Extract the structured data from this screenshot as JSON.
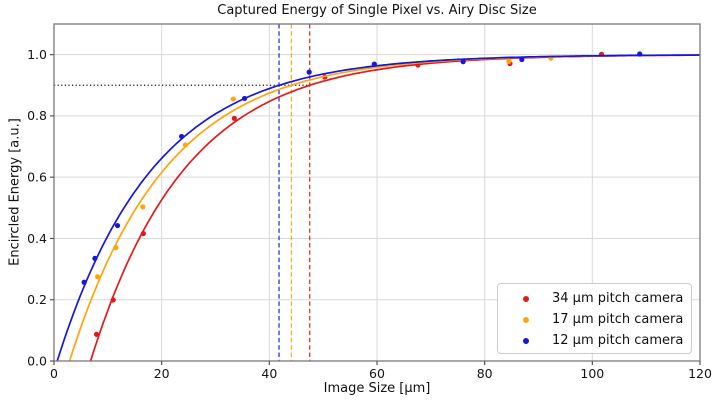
{
  "chart_data": {
    "type": "scatter",
    "title": "Captured Energy of Single Pixel vs. Airy Disc Size",
    "xlabel": "Image Size [μm]",
    "ylabel": "Encircled Energy [a.u.]",
    "xlim": [
      0,
      120
    ],
    "ylim": [
      0,
      1.1
    ],
    "grid": true,
    "grid_color": "#d9d9d9",
    "spine_color": "#7a7a7a",
    "legend_position": "lower right",
    "xticks": [
      {
        "v": 0,
        "label": "0"
      },
      {
        "v": 20,
        "label": "20"
      },
      {
        "v": 40,
        "label": "40"
      },
      {
        "v": 60,
        "label": "60"
      },
      {
        "v": 80,
        "label": "80"
      },
      {
        "v": 100,
        "label": "100"
      },
      {
        "v": 120,
        "label": "120"
      }
    ],
    "yticks": [
      {
        "v": 0.0,
        "label": "0.0"
      },
      {
        "v": 0.2,
        "label": "0.2"
      },
      {
        "v": 0.4,
        "label": "0.4"
      },
      {
        "v": 0.6,
        "label": "0.6"
      },
      {
        "v": 0.8,
        "label": "0.8"
      },
      {
        "v": 1.0,
        "label": "1.0"
      }
    ],
    "hline": {
      "y": 0.9,
      "x_start": 0,
      "x_end": 47.5,
      "style": "dotted",
      "color": "#111111"
    },
    "series": [
      {
        "name": "34 μm pitch camera",
        "color": "#e31a1a",
        "marker": "dot",
        "fit_curve": {
          "model": "1 - exp(-(x - x0)/tau)",
          "x0": 6.8,
          "tau": 17.68
        },
        "vline_x": 47.5,
        "points": [
          [
            7.9,
            0.087
          ],
          [
            11.0,
            0.199
          ],
          [
            16.6,
            0.416
          ],
          [
            33.5,
            0.792
          ],
          [
            50.3,
            0.927
          ],
          [
            67.6,
            0.966
          ],
          [
            84.7,
            0.971
          ],
          [
            101.7,
            1.001
          ]
        ]
      },
      {
        "name": "17 μm pitch camera",
        "color": "#ffa40b",
        "marker": "dot",
        "fit_curve": {
          "model": "1 - exp(-(x - x0)/tau)",
          "x0": 2.9,
          "tau": 17.89
        },
        "vline_x": 44.1,
        "points": [
          [
            8.1,
            0.275
          ],
          [
            11.5,
            0.37
          ],
          [
            16.5,
            0.503
          ],
          [
            24.4,
            0.705
          ],
          [
            33.3,
            0.855
          ],
          [
            84.5,
            0.978
          ],
          [
            92.3,
            0.989
          ]
        ]
      },
      {
        "name": "12 μm pitch camera",
        "color": "#1616dd",
        "marker": "dot",
        "fit_curve": {
          "model": "1 - exp(-(x - x0)/tau)",
          "x0": 0.6,
          "tau": 17.9
        },
        "vline_x": 41.8,
        "points": [
          [
            5.6,
            0.257
          ],
          [
            7.6,
            0.335
          ],
          [
            11.8,
            0.442
          ],
          [
            23.7,
            0.733
          ],
          [
            35.4,
            0.857
          ],
          [
            47.4,
            0.943
          ],
          [
            59.5,
            0.969
          ],
          [
            76.0,
            0.977
          ],
          [
            86.9,
            0.984
          ],
          [
            108.8,
            1.002
          ]
        ]
      }
    ]
  }
}
